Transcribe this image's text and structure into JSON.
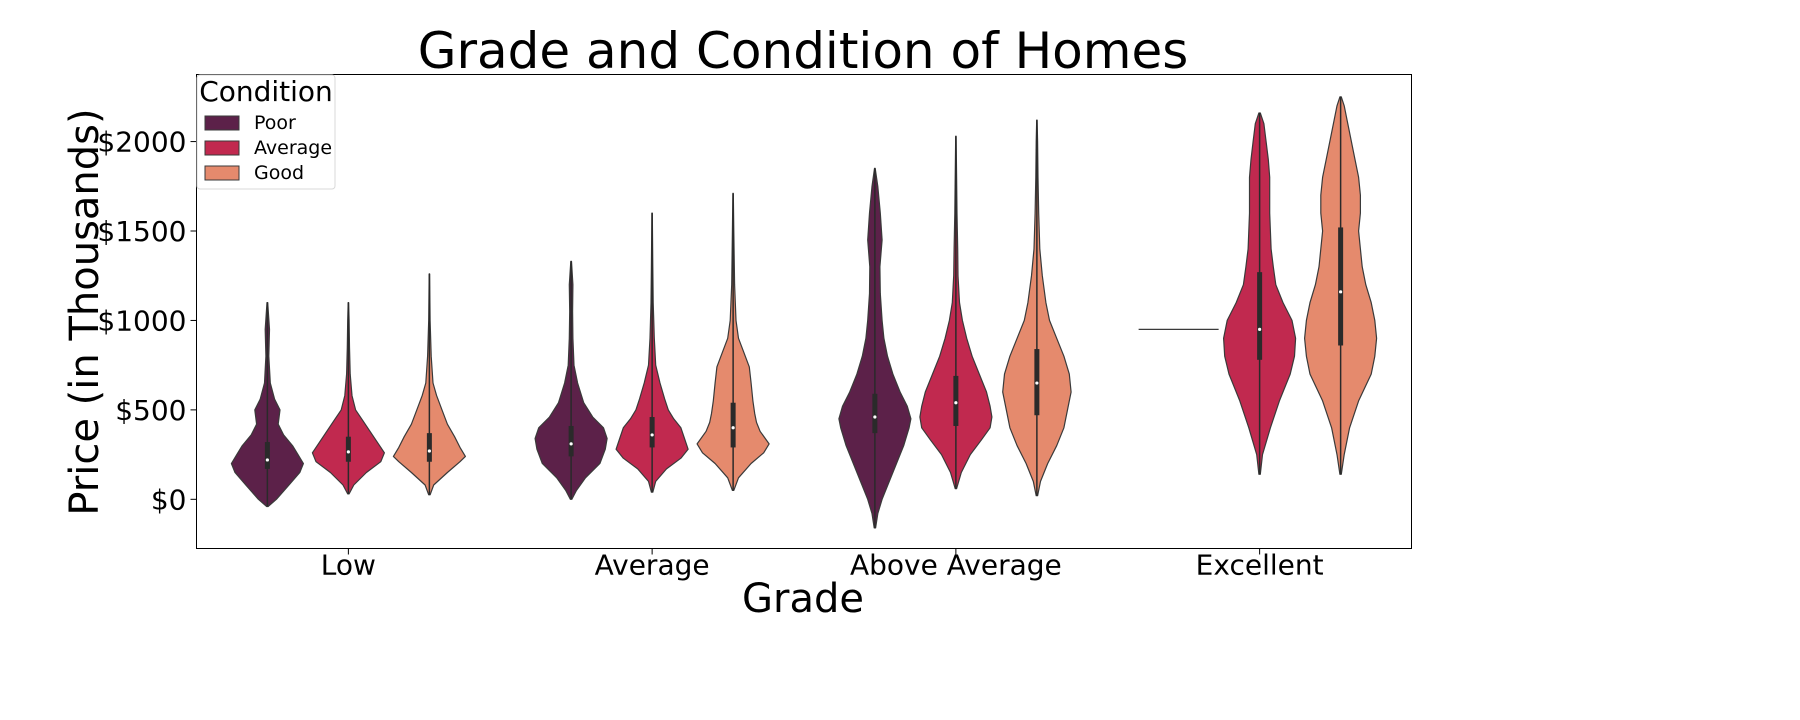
{
  "chart_data": {
    "type": "violin",
    "title": "Grade and Condition of Homes",
    "xlabel": "Grade",
    "ylabel": "Price (in Thousands)",
    "categories": [
      "Low",
      "Average",
      "Above Average",
      "Excellent"
    ],
    "ylim": [
      -275,
      2375
    ],
    "y_ticks": [
      {
        "value": 0,
        "label": "$0"
      },
      {
        "value": 500,
        "label": "$500"
      },
      {
        "value": 1000,
        "label": "$1000"
      },
      {
        "value": 1500,
        "label": "$1500"
      },
      {
        "value": 2000,
        "label": "$2000"
      }
    ],
    "grid": false,
    "legend": {
      "title": "Condition",
      "position": "top-left"
    },
    "series": [
      {
        "name": "Poor",
        "color": "#5c2149",
        "violins": [
          {
            "category": "Low",
            "min": -40,
            "max": 1100,
            "q1": 170,
            "median": 220,
            "q3": 320,
            "profile": [
              [
                -40,
                0.02
              ],
              [
                0,
                0.25
              ],
              [
                80,
                0.6
              ],
              [
                150,
                0.9
              ],
              [
                200,
                1.0
              ],
              [
                250,
                0.85
              ],
              [
                300,
                0.7
              ],
              [
                360,
                0.45
              ],
              [
                420,
                0.3
              ],
              [
                500,
                0.35
              ],
              [
                560,
                0.2
              ],
              [
                650,
                0.08
              ],
              [
                800,
                0.04
              ],
              [
                950,
                0.06
              ],
              [
                1100,
                0.01
              ]
            ]
          },
          {
            "category": "Average",
            "min": 0,
            "max": 1330,
            "q1": 240,
            "median": 310,
            "q3": 410,
            "profile": [
              [
                0,
                0.02
              ],
              [
                50,
                0.15
              ],
              [
                120,
                0.4
              ],
              [
                200,
                0.8
              ],
              [
                280,
                0.95
              ],
              [
                340,
                1.0
              ],
              [
                400,
                0.9
              ],
              [
                460,
                0.6
              ],
              [
                540,
                0.35
              ],
              [
                650,
                0.18
              ],
              [
                750,
                0.08
              ],
              [
                900,
                0.05
              ],
              [
                1050,
                0.04
              ],
              [
                1200,
                0.05
              ],
              [
                1330,
                0.01
              ]
            ]
          },
          {
            "category": "Above Average",
            "min": -160,
            "max": 1850,
            "q1": 370,
            "median": 460,
            "q3": 590,
            "profile": [
              [
                -160,
                0.02
              ],
              [
                -80,
                0.08
              ],
              [
                0,
                0.2
              ],
              [
                100,
                0.4
              ],
              [
                200,
                0.6
              ],
              [
                300,
                0.8
              ],
              [
                400,
                0.95
              ],
              [
                450,
                1.0
              ],
              [
                520,
                0.9
              ],
              [
                600,
                0.7
              ],
              [
                700,
                0.5
              ],
              [
                800,
                0.35
              ],
              [
                900,
                0.25
              ],
              [
                1000,
                0.2
              ],
              [
                1150,
                0.15
              ],
              [
                1300,
                0.14
              ],
              [
                1450,
                0.2
              ],
              [
                1600,
                0.15
              ],
              [
                1750,
                0.08
              ],
              [
                1850,
                0.01
              ]
            ]
          }
        ]
      },
      {
        "name": "Average",
        "color": "#c1294f",
        "violins": [
          {
            "category": "Low",
            "min": 30,
            "max": 1100,
            "q1": 210,
            "median": 265,
            "q3": 350,
            "profile": [
              [
                30,
                0.02
              ],
              [
                80,
                0.15
              ],
              [
                150,
                0.5
              ],
              [
                210,
                0.9
              ],
              [
                260,
                1.0
              ],
              [
                320,
                0.8
              ],
              [
                380,
                0.6
              ],
              [
                440,
                0.4
              ],
              [
                500,
                0.2
              ],
              [
                580,
                0.1
              ],
              [
                700,
                0.05
              ],
              [
                850,
                0.03
              ],
              [
                1000,
                0.02
              ],
              [
                1100,
                0.005
              ]
            ]
          },
          {
            "category": "Average",
            "min": 40,
            "max": 1600,
            "q1": 290,
            "median": 360,
            "q3": 460,
            "profile": [
              [
                40,
                0.02
              ],
              [
                100,
                0.1
              ],
              [
                170,
                0.4
              ],
              [
                230,
                0.8
              ],
              [
                280,
                1.0
              ],
              [
                340,
                0.9
              ],
              [
                400,
                0.8
              ],
              [
                450,
                0.6
              ],
              [
                500,
                0.45
              ],
              [
                560,
                0.35
              ],
              [
                650,
                0.22
              ],
              [
                750,
                0.1
              ],
              [
                900,
                0.06
              ],
              [
                1100,
                0.03
              ],
              [
                1300,
                0.02
              ],
              [
                1600,
                0.005
              ]
            ]
          },
          {
            "category": "Above Average",
            "min": 60,
            "max": 2030,
            "q1": 410,
            "median": 540,
            "q3": 690,
            "profile": [
              [
                60,
                0.02
              ],
              [
                150,
                0.15
              ],
              [
                250,
                0.4
              ],
              [
                330,
                0.7
              ],
              [
                400,
                0.95
              ],
              [
                460,
                1.0
              ],
              [
                520,
                0.95
              ],
              [
                600,
                0.85
              ],
              [
                700,
                0.65
              ],
              [
                800,
                0.45
              ],
              [
                900,
                0.3
              ],
              [
                1000,
                0.18
              ],
              [
                1100,
                0.1
              ],
              [
                1250,
                0.06
              ],
              [
                1400,
                0.05
              ],
              [
                1600,
                0.03
              ],
              [
                1800,
                0.02
              ],
              [
                2030,
                0.005
              ]
            ]
          }
        ]
      },
      {
        "name": "Good",
        "color": "#e58a6d",
        "violins": [
          {
            "category": "Low",
            "min": 25,
            "max": 1260,
            "q1": 210,
            "median": 270,
            "q3": 370,
            "profile": [
              [
                25,
                0.02
              ],
              [
                80,
                0.12
              ],
              [
                150,
                0.5
              ],
              [
                210,
                0.85
              ],
              [
                240,
                1.0
              ],
              [
                290,
                0.85
              ],
              [
                350,
                0.7
              ],
              [
                420,
                0.5
              ],
              [
                500,
                0.35
              ],
              [
                580,
                0.2
              ],
              [
                650,
                0.1
              ],
              [
                800,
                0.05
              ],
              [
                1000,
                0.02
              ],
              [
                1260,
                0.005
              ]
            ]
          },
          {
            "category": "Average",
            "min": 50,
            "max": 1710,
            "q1": 290,
            "median": 400,
            "q3": 540,
            "profile": [
              [
                50,
                0.02
              ],
              [
                120,
                0.15
              ],
              [
                200,
                0.5
              ],
              [
                260,
                0.85
              ],
              [
                310,
                1.0
              ],
              [
                380,
                0.75
              ],
              [
                430,
                0.65
              ],
              [
                480,
                0.6
              ],
              [
                550,
                0.55
              ],
              [
                650,
                0.5
              ],
              [
                740,
                0.45
              ],
              [
                820,
                0.3
              ],
              [
                900,
                0.15
              ],
              [
                1000,
                0.08
              ],
              [
                1200,
                0.04
              ],
              [
                1500,
                0.02
              ],
              [
                1710,
                0.005
              ]
            ]
          },
          {
            "category": "Above Average",
            "min": 20,
            "max": 2120,
            "q1": 470,
            "median": 650,
            "q3": 840,
            "profile": [
              [
                20,
                0.02
              ],
              [
                100,
                0.1
              ],
              [
                200,
                0.3
              ],
              [
                300,
                0.55
              ],
              [
                400,
                0.75
              ],
              [
                500,
                0.85
              ],
              [
                600,
                0.95
              ],
              [
                700,
                0.9
              ],
              [
                800,
                0.75
              ],
              [
                900,
                0.55
              ],
              [
                1000,
                0.35
              ],
              [
                1100,
                0.25
              ],
              [
                1250,
                0.15
              ],
              [
                1400,
                0.08
              ],
              [
                1600,
                0.05
              ],
              [
                1800,
                0.03
              ],
              [
                2000,
                0.02
              ],
              [
                2120,
                0.005
              ]
            ]
          },
          {
            "category": "Excellent",
            "min": 140,
            "max": 2250,
            "q1": 860,
            "median": 1160,
            "q3": 1520,
            "profile": [
              [
                140,
                0.02
              ],
              [
                250,
                0.1
              ],
              [
                400,
                0.25
              ],
              [
                550,
                0.5
              ],
              [
                700,
                0.85
              ],
              [
                800,
                0.95
              ],
              [
                900,
                1.0
              ],
              [
                1000,
                0.95
              ],
              [
                1100,
                0.85
              ],
              [
                1200,
                0.7
              ],
              [
                1300,
                0.6
              ],
              [
                1400,
                0.55
              ],
              [
                1500,
                0.5
              ],
              [
                1600,
                0.55
              ],
              [
                1700,
                0.55
              ],
              [
                1800,
                0.5
              ],
              [
                1900,
                0.4
              ],
              [
                2000,
                0.3
              ],
              [
                2100,
                0.2
              ],
              [
                2200,
                0.1
              ],
              [
                2250,
                0.02
              ]
            ]
          }
        ]
      }
    ],
    "excellent_poor_value": 950,
    "excellent_average": {
      "min": 140,
      "max": 2160,
      "q1": 780,
      "median": 950,
      "q3": 1270,
      "profile": [
        [
          140,
          0.02
        ],
        [
          250,
          0.08
        ],
        [
          400,
          0.3
        ],
        [
          550,
          0.55
        ],
        [
          700,
          0.85
        ],
        [
          800,
          0.97
        ],
        [
          900,
          1.0
        ],
        [
          1000,
          0.9
        ],
        [
          1100,
          0.65
        ],
        [
          1200,
          0.45
        ],
        [
          1300,
          0.38
        ],
        [
          1400,
          0.32
        ],
        [
          1500,
          0.3
        ],
        [
          1600,
          0.28
        ],
        [
          1700,
          0.28
        ],
        [
          1800,
          0.28
        ],
        [
          1900,
          0.24
        ],
        [
          2000,
          0.18
        ],
        [
          2100,
          0.12
        ],
        [
          2160,
          0.02
        ]
      ]
    }
  }
}
